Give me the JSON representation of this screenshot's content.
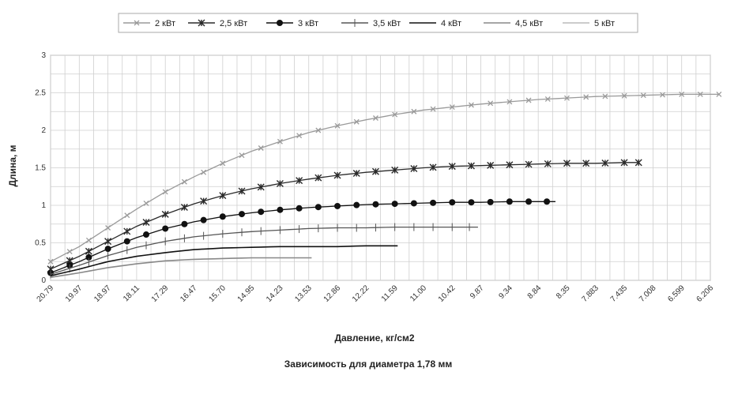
{
  "chart_data": {
    "type": "line",
    "title": "",
    "caption": "Зависимость для диаметра 1,78 мм",
    "xlabel": "Давление, кг/см2",
    "ylabel": "Длина, м",
    "ylim": [
      0,
      3
    ],
    "yticks": [
      "0",
      "0.5",
      "1",
      "1.5",
      "2",
      "2.5",
      "3"
    ],
    "xticks": [
      "20.79",
      "19.97",
      "18.97",
      "18.11",
      "17.29",
      "16.47",
      "15.70",
      "14.95",
      "14.23",
      "13.53",
      "12.86",
      "12.22",
      "11.59",
      "11.00",
      "10.42",
      "9.87",
      "9.34",
      "8.84",
      "8.35",
      "7.883",
      "7.435",
      "7.008",
      "6.599",
      "6.206"
    ],
    "grid": true,
    "legend_position": "top",
    "series": [
      {
        "name": "2 кВт",
        "color": "#9a9a9a",
        "marker": "x",
        "x_end": 23.3,
        "values": [
          [
            0,
            0.25
          ],
          [
            1,
            0.45
          ],
          [
            2,
            0.7
          ],
          [
            3,
            0.95
          ],
          [
            4,
            1.18
          ],
          [
            5,
            1.38
          ],
          [
            6,
            1.56
          ],
          [
            7,
            1.72
          ],
          [
            8,
            1.85
          ],
          [
            9,
            1.97
          ],
          [
            10,
            2.06
          ],
          [
            11,
            2.14
          ],
          [
            12,
            2.21
          ],
          [
            13,
            2.27
          ],
          [
            14,
            2.31
          ],
          [
            15,
            2.35
          ],
          [
            16,
            2.38
          ],
          [
            17,
            2.41
          ],
          [
            18,
            2.43
          ],
          [
            19,
            2.45
          ],
          [
            20,
            2.46
          ],
          [
            21,
            2.47
          ],
          [
            22,
            2.48
          ],
          [
            23.3,
            2.48
          ]
        ]
      },
      {
        "name": "2,5 кВт",
        "color": "#2a2a2a",
        "marker": "star",
        "x_end": 20.5,
        "values": [
          [
            0,
            0.15
          ],
          [
            1,
            0.32
          ],
          [
            2,
            0.52
          ],
          [
            3,
            0.72
          ],
          [
            4,
            0.88
          ],
          [
            5,
            1.02
          ],
          [
            6,
            1.13
          ],
          [
            7,
            1.22
          ],
          [
            8,
            1.29
          ],
          [
            9,
            1.35
          ],
          [
            10,
            1.4
          ],
          [
            11,
            1.44
          ],
          [
            12,
            1.47
          ],
          [
            13,
            1.5
          ],
          [
            14,
            1.52
          ],
          [
            15,
            1.53
          ],
          [
            16,
            1.54
          ],
          [
            17,
            1.55
          ],
          [
            18,
            1.56
          ],
          [
            19,
            1.56
          ],
          [
            20,
            1.57
          ],
          [
            20.5,
            1.57
          ]
        ]
      },
      {
        "name": "3 кВт",
        "color": "#111111",
        "marker": "dot",
        "x_end": 17.6,
        "values": [
          [
            0,
            0.1
          ],
          [
            1,
            0.25
          ],
          [
            2,
            0.42
          ],
          [
            3,
            0.57
          ],
          [
            4,
            0.69
          ],
          [
            5,
            0.78
          ],
          [
            6,
            0.85
          ],
          [
            7,
            0.9
          ],
          [
            8,
            0.94
          ],
          [
            9,
            0.97
          ],
          [
            10,
            0.99
          ],
          [
            11,
            1.01
          ],
          [
            12,
            1.02
          ],
          [
            13,
            1.03
          ],
          [
            14,
            1.04
          ],
          [
            15,
            1.04
          ],
          [
            16,
            1.05
          ],
          [
            17,
            1.05
          ],
          [
            17.6,
            1.05
          ]
        ]
      },
      {
        "name": "3,5 кВт",
        "color": "#555555",
        "marker": "plus",
        "x_end": 14.9,
        "values": [
          [
            0,
            0.08
          ],
          [
            1,
            0.2
          ],
          [
            2,
            0.33
          ],
          [
            3,
            0.44
          ],
          [
            4,
            0.52
          ],
          [
            5,
            0.58
          ],
          [
            6,
            0.62
          ],
          [
            7,
            0.65
          ],
          [
            8,
            0.67
          ],
          [
            9,
            0.69
          ],
          [
            10,
            0.7
          ],
          [
            11,
            0.7
          ],
          [
            12,
            0.71
          ],
          [
            13,
            0.71
          ],
          [
            14,
            0.71
          ],
          [
            14.9,
            0.71
          ]
        ]
      },
      {
        "name": "4 кВт",
        "color": "#111111",
        "marker": "none",
        "x_end": 12.1,
        "values": [
          [
            0,
            0.06
          ],
          [
            1,
            0.15
          ],
          [
            2,
            0.25
          ],
          [
            3,
            0.32
          ],
          [
            4,
            0.37
          ],
          [
            5,
            0.41
          ],
          [
            6,
            0.43
          ],
          [
            7,
            0.44
          ],
          [
            8,
            0.45
          ],
          [
            9,
            0.45
          ],
          [
            10,
            0.45
          ],
          [
            11,
            0.46
          ],
          [
            12.1,
            0.46
          ]
        ]
      },
      {
        "name": "4,5 кВт",
        "color": "#888888",
        "marker": "none",
        "x_end": 9.1,
        "values": [
          [
            0,
            0.04
          ],
          [
            1,
            0.1
          ],
          [
            2,
            0.17
          ],
          [
            3,
            0.22
          ],
          [
            4,
            0.26
          ],
          [
            5,
            0.28
          ],
          [
            6,
            0.29
          ],
          [
            7,
            0.3
          ],
          [
            8,
            0.3
          ],
          [
            9.1,
            0.3
          ]
        ]
      },
      {
        "name": "5 кВт",
        "color": "#bbbbbb",
        "marker": "none",
        "x_end": 0,
        "values": []
      }
    ]
  }
}
